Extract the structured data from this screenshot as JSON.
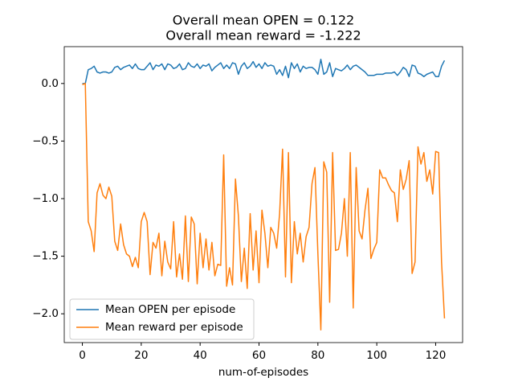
{
  "chart_data": {
    "type": "line",
    "title": [
      "Overall mean OPEN = 0.122",
      "Overall mean reward = -1.222"
    ],
    "xlabel": "num-of-episodes",
    "x": [
      0,
      1,
      2,
      3,
      4,
      5,
      6,
      7,
      8,
      9,
      10,
      11,
      12,
      13,
      14,
      15,
      16,
      17,
      18,
      19,
      20,
      21,
      22,
      23,
      24,
      25,
      26,
      27,
      28,
      29,
      30,
      31,
      32,
      33,
      34,
      35,
      36,
      37,
      38,
      39,
      40,
      41,
      42,
      43,
      44,
      45,
      46,
      47,
      48,
      49,
      50,
      51,
      52,
      53,
      54,
      55,
      56,
      57,
      58,
      59,
      60,
      61,
      62,
      63,
      64,
      65,
      66,
      67,
      68,
      69,
      70,
      71,
      72,
      73,
      74,
      75,
      76,
      77,
      78,
      79,
      80,
      81,
      82,
      83,
      84,
      85,
      86,
      87,
      88,
      89,
      90,
      91,
      92,
      93,
      94,
      95,
      96,
      97,
      98,
      99,
      100,
      101,
      102,
      103,
      104,
      105,
      106,
      107,
      108,
      109,
      110,
      111,
      112,
      113,
      114,
      115,
      116,
      117,
      118,
      119,
      120,
      121,
      122,
      123
    ],
    "series": [
      {
        "name": "Mean OPEN per episode",
        "color": "#1f77b4",
        "values": [
          0.0,
          0.0,
          0.12,
          0.13,
          0.15,
          0.1,
          0.09,
          0.1,
          0.1,
          0.09,
          0.1,
          0.14,
          0.15,
          0.12,
          0.14,
          0.15,
          0.16,
          0.13,
          0.17,
          0.13,
          0.12,
          0.12,
          0.15,
          0.18,
          0.12,
          0.16,
          0.15,
          0.17,
          0.12,
          0.17,
          0.16,
          0.13,
          0.14,
          0.17,
          0.12,
          0.13,
          0.18,
          0.15,
          0.14,
          0.17,
          0.13,
          0.16,
          0.15,
          0.17,
          0.11,
          0.14,
          0.16,
          0.18,
          0.13,
          0.16,
          0.13,
          0.18,
          0.17,
          0.08,
          0.15,
          0.18,
          0.13,
          0.15,
          0.19,
          0.14,
          0.17,
          0.13,
          0.18,
          0.15,
          0.16,
          0.15,
          0.08,
          0.12,
          0.07,
          0.15,
          0.05,
          0.18,
          0.13,
          0.17,
          0.1,
          0.15,
          0.13,
          0.14,
          0.14,
          0.12,
          0.08,
          0.21,
          0.08,
          0.1,
          0.18,
          0.06,
          0.13,
          0.12,
          0.11,
          0.13,
          0.16,
          0.12,
          0.15,
          0.16,
          0.14,
          0.12,
          0.1,
          0.07,
          0.07,
          0.07,
          0.08,
          0.08,
          0.08,
          0.09,
          0.09,
          0.09,
          0.1,
          0.07,
          0.1,
          0.14,
          0.12,
          0.06,
          0.16,
          0.15,
          0.09,
          0.08,
          0.06,
          0.08,
          0.09,
          0.1,
          0.06,
          0.06,
          0.15,
          0.2
        ]
      },
      {
        "name": "Mean reward per episode",
        "color": "#ff7f0e",
        "values": [
          -0.01,
          0.0,
          -1.2,
          -1.28,
          -1.46,
          -0.95,
          -0.87,
          -0.97,
          -1.0,
          -0.9,
          -0.98,
          -1.37,
          -1.45,
          -1.22,
          -1.4,
          -1.48,
          -1.5,
          -1.59,
          -1.51,
          -1.6,
          -1.2,
          -1.12,
          -1.2,
          -1.66,
          -1.38,
          -1.43,
          -1.3,
          -1.67,
          -1.37,
          -1.55,
          -1.61,
          -1.2,
          -1.68,
          -1.48,
          -1.7,
          -1.15,
          -1.72,
          -1.16,
          -1.22,
          -1.74,
          -1.3,
          -1.6,
          -1.35,
          -1.62,
          -1.38,
          -1.67,
          -1.57,
          -1.58,
          -0.62,
          -1.76,
          -1.6,
          -1.75,
          -0.83,
          -1.15,
          -1.72,
          -1.43,
          -1.78,
          -1.13,
          -1.62,
          -1.28,
          -1.73,
          -1.1,
          -1.3,
          -1.6,
          -1.25,
          -1.3,
          -1.43,
          -1.13,
          -0.57,
          -1.68,
          -0.6,
          -1.73,
          -1.2,
          -1.48,
          -1.3,
          -1.55,
          -1.33,
          -1.25,
          -0.87,
          -0.73,
          -1.48,
          -2.14,
          -0.68,
          -0.77,
          -1.9,
          -0.6,
          -1.45,
          -1.44,
          -1.3,
          -1.0,
          -1.5,
          -0.6,
          -1.95,
          -0.73,
          -1.28,
          -1.35,
          -1.1,
          -0.91,
          -1.52,
          -1.44,
          -1.38,
          -0.75,
          -0.82,
          -0.82,
          -0.88,
          -0.93,
          -0.95,
          -1.2,
          -0.75,
          -0.92,
          -0.83,
          -0.67,
          -1.65,
          -1.55,
          -0.55,
          -0.7,
          -0.6,
          -0.85,
          -0.75,
          -0.96,
          -0.59,
          -0.6,
          -1.55,
          -2.04
        ]
      }
    ],
    "xlim": [
      -6.15,
      129.15
    ],
    "ylim": [
      -2.25,
      0.32
    ],
    "xticks": [
      0,
      20,
      40,
      60,
      80,
      100,
      120
    ],
    "yticks": [
      {
        "value": 0,
        "label": "0.0"
      },
      {
        "value": -0.5,
        "label": "−0.5"
      },
      {
        "value": -1.0,
        "label": "−1.0"
      },
      {
        "value": -1.5,
        "label": "−1.5"
      },
      {
        "value": -2.0,
        "label": "−2.0"
      }
    ],
    "legend": "lower left"
  }
}
